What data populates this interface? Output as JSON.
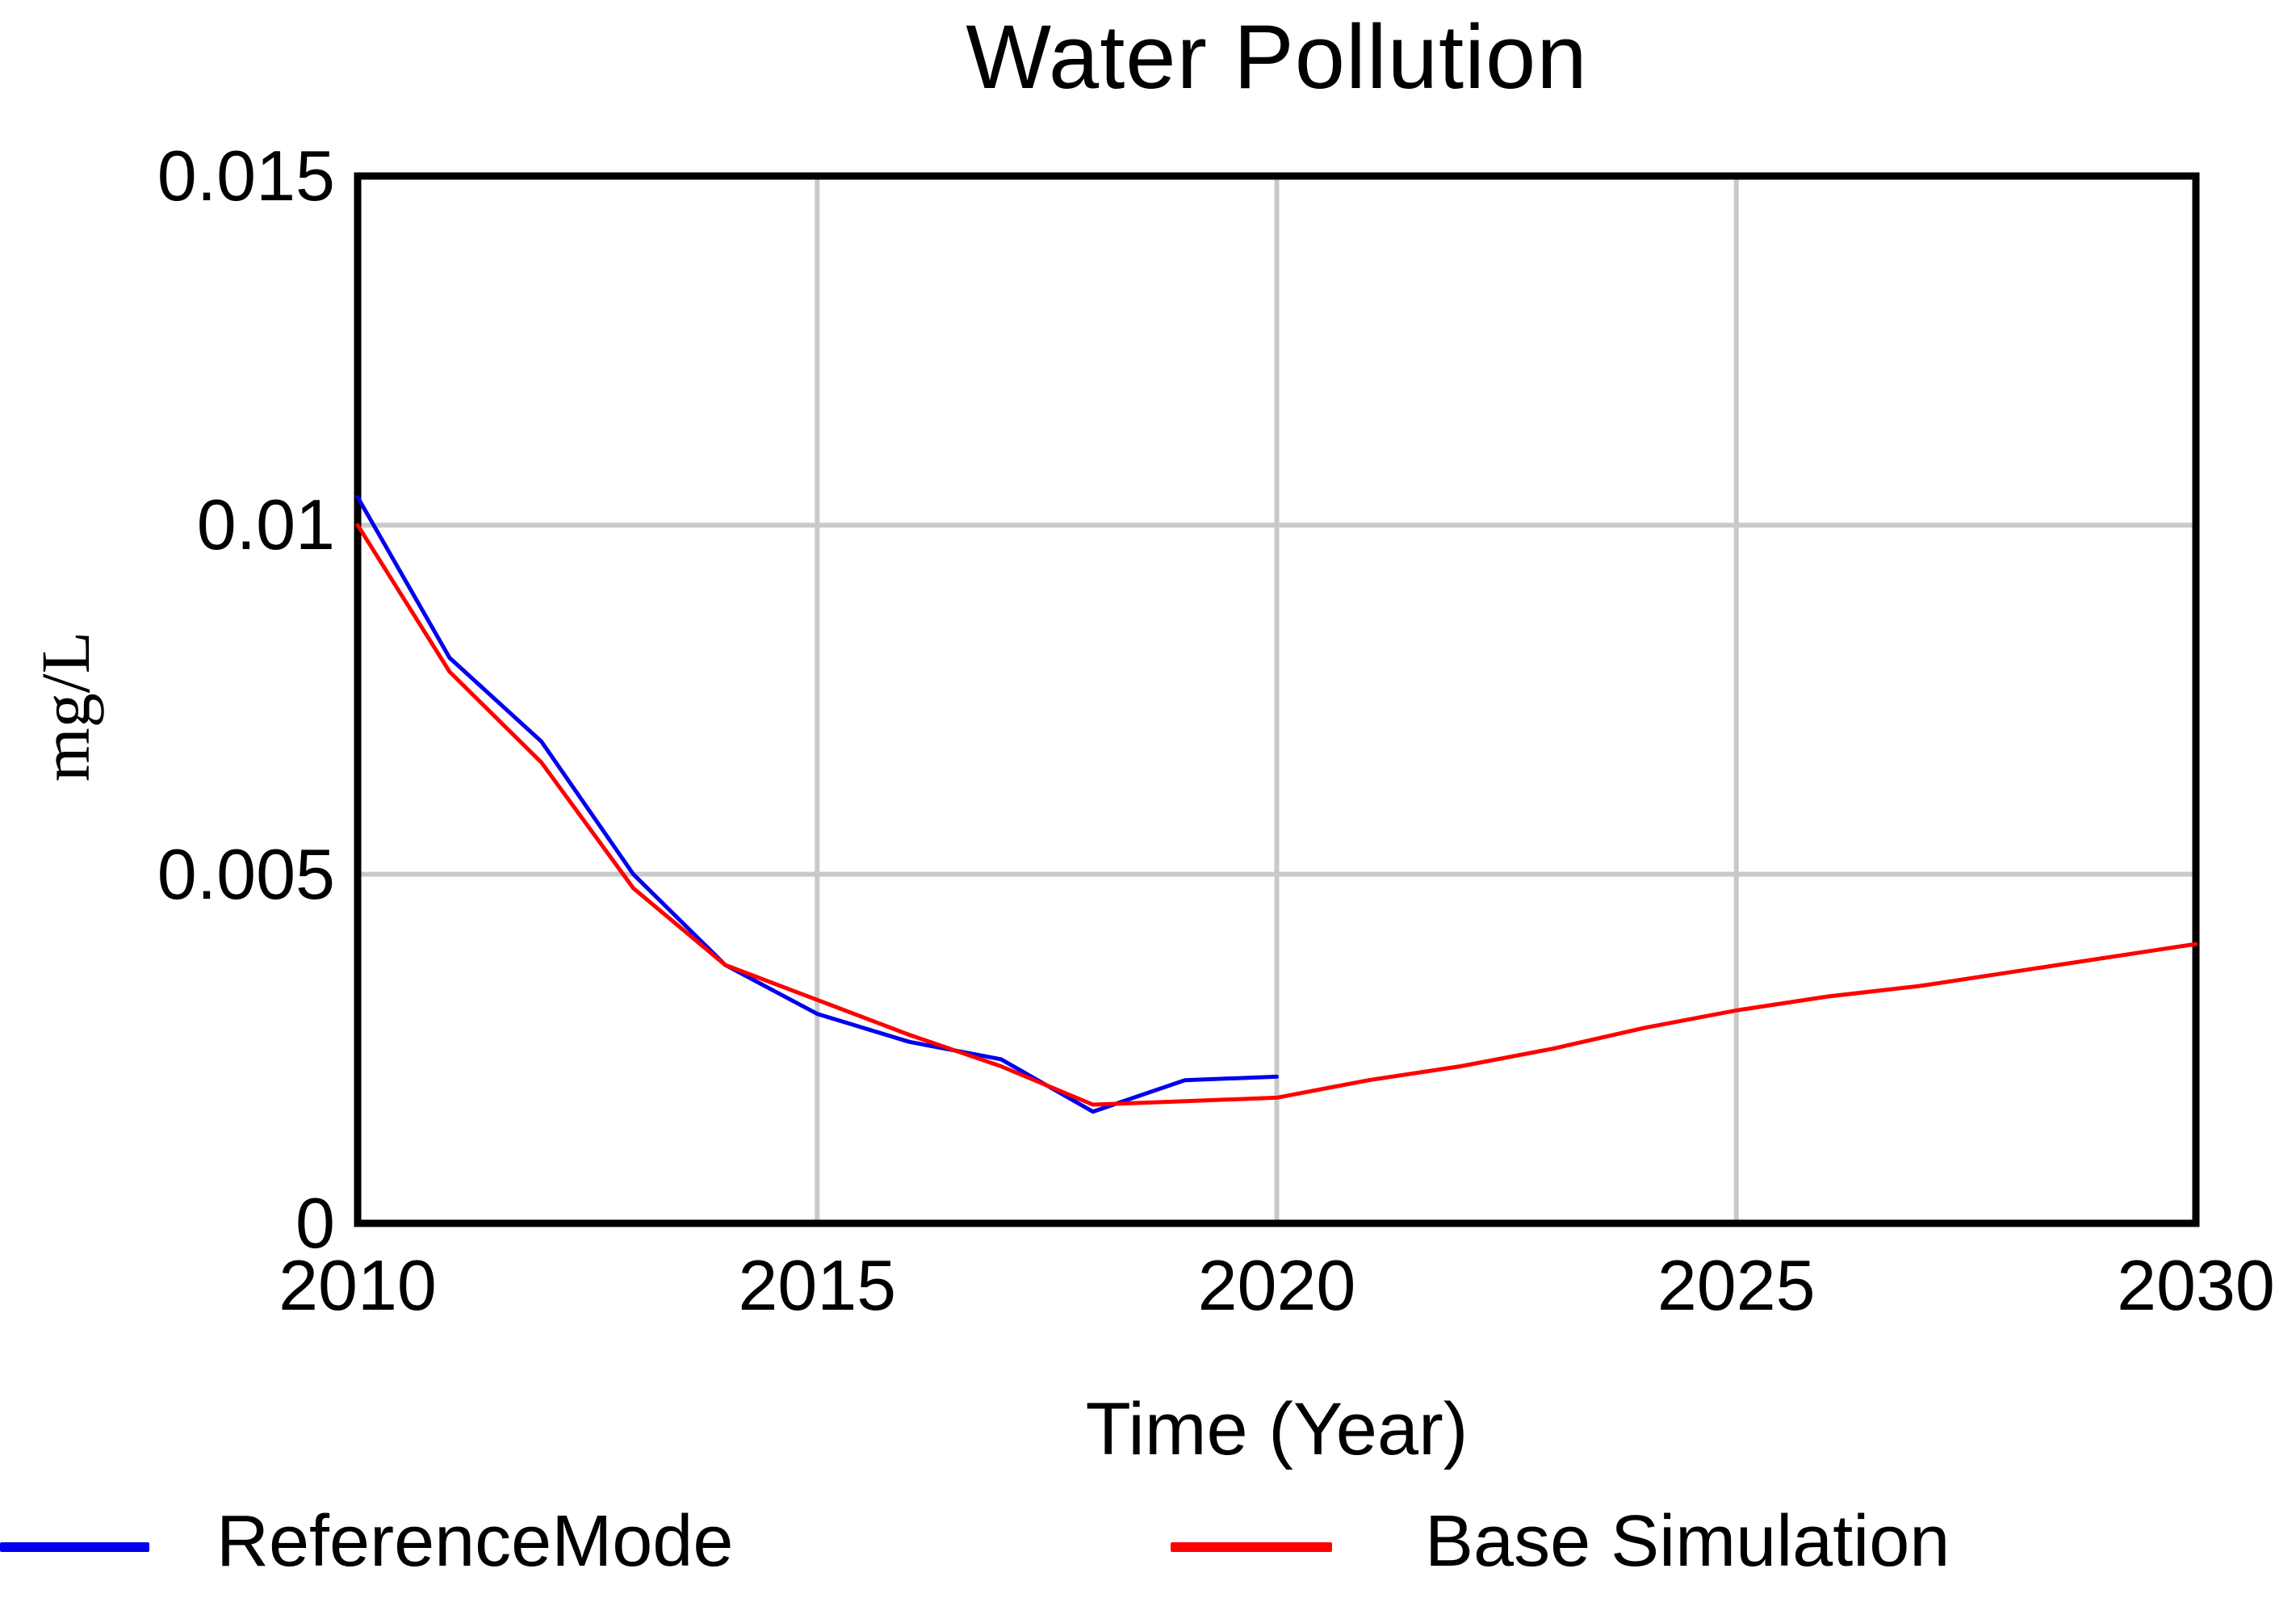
{
  "chart_data": {
    "type": "line",
    "title": "Water Pollution",
    "xlabel": "Time (Year)",
    "ylabel": "mg/L",
    "xlim": [
      2010,
      2030
    ],
    "ylim": [
      0,
      0.015
    ],
    "x_ticks": [
      "2010",
      "2015",
      "2020",
      "2025",
      "2030"
    ],
    "y_ticks": [
      "0",
      "0.005",
      "0.01",
      "0.015"
    ],
    "grid": true,
    "legend_position": "bottom",
    "series": [
      {
        "name": "ReferenceMode",
        "color": "#0000ee",
        "x": [
          2010,
          2011,
          2012,
          2013,
          2014,
          2015,
          2016,
          2017,
          2018,
          2019,
          2020
        ],
        "values": [
          0.0104,
          0.0081,
          0.0069,
          0.005,
          0.0037,
          0.003,
          0.0026,
          0.00235,
          0.0016,
          0.00205,
          0.0021
        ]
      },
      {
        "name": "Base Simulation",
        "color": "#ff0000",
        "x": [
          2010,
          2011,
          2012,
          2013,
          2014,
          2015,
          2016,
          2017,
          2018,
          2019,
          2020,
          2021,
          2022,
          2023,
          2024,
          2025,
          2026,
          2027,
          2028,
          2029,
          2030
        ],
        "values": [
          0.01,
          0.0079,
          0.0066,
          0.0048,
          0.0037,
          0.0032,
          0.0027,
          0.00225,
          0.0017,
          0.00175,
          0.0018,
          0.00205,
          0.00225,
          0.0025,
          0.0028,
          0.00305,
          0.00325,
          0.0034,
          0.0036,
          0.0038,
          0.004
        ]
      }
    ]
  },
  "colors": {
    "background": "#ffffff",
    "axis": "#000000",
    "gridline": "#c9c9c9",
    "text": "#000000"
  }
}
